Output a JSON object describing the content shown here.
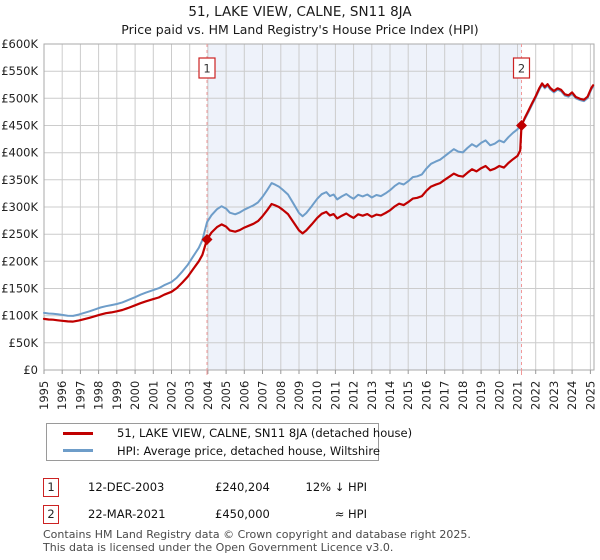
{
  "title": "51, LAKE VIEW, CALNE, SN11 8JA",
  "subtitle": "Price paid vs. HM Land Registry's House Price Index (HPI)",
  "colors": {
    "property_line": "#c00000",
    "hpi_line": "#6e9dc9",
    "dashed_marker_line": "#f19999",
    "shaded_region": "#eef2fa",
    "gridline": "#cccccc",
    "plot_border": "#aaaaaa",
    "marker_box_border": "#cc2222",
    "axis_text": "#222222"
  },
  "chart_data": {
    "type": "line",
    "xlim": [
      1995,
      2025.2
    ],
    "ylim": [
      0,
      600000
    ],
    "ytick_step": 50000,
    "yticks": [
      0,
      50000,
      100000,
      150000,
      200000,
      250000,
      300000,
      350000,
      400000,
      450000,
      500000,
      550000,
      600000
    ],
    "ytick_labels": [
      "£0",
      "£50K",
      "£100K",
      "£150K",
      "£200K",
      "£250K",
      "£300K",
      "£350K",
      "£400K",
      "£450K",
      "£500K",
      "£550K",
      "£600K"
    ],
    "xticks": [
      1995,
      1996,
      1997,
      1998,
      1999,
      2000,
      2001,
      2002,
      2003,
      2004,
      2005,
      2006,
      2007,
      2008,
      2009,
      2010,
      2011,
      2012,
      2013,
      2014,
      2015,
      2016,
      2017,
      2018,
      2019,
      2020,
      2021,
      2022,
      2023,
      2024,
      2025
    ],
    "grid": true,
    "legend_position": "bottom",
    "shaded_region": {
      "from": 2003.95,
      "to": 2021.22
    },
    "sale_markers": [
      {
        "label": "1",
        "year": 2003.95,
        "price": 240204
      },
      {
        "label": "2",
        "year": 2021.22,
        "price": 450000
      }
    ],
    "series": [
      {
        "name": "HPI: Average price, detached house, Wiltshire",
        "color": "#6e9dc9",
        "points": [
          [
            1995.0,
            105000
          ],
          [
            1995.25,
            104000
          ],
          [
            1995.5,
            103500
          ],
          [
            1995.75,
            102500
          ],
          [
            1996.0,
            101500
          ],
          [
            1996.3,
            100000
          ],
          [
            1996.6,
            99500
          ],
          [
            1996.9,
            102000
          ],
          [
            1997.2,
            105000
          ],
          [
            1997.5,
            108000
          ],
          [
            1997.8,
            111500
          ],
          [
            1998.1,
            115000
          ],
          [
            1998.4,
            117500
          ],
          [
            1998.7,
            119500
          ],
          [
            1999.0,
            121500
          ],
          [
            1999.3,
            124500
          ],
          [
            1999.6,
            128500
          ],
          [
            2000.0,
            134000
          ],
          [
            2000.3,
            138500
          ],
          [
            2000.6,
            142500
          ],
          [
            2001.0,
            147000
          ],
          [
            2001.3,
            150500
          ],
          [
            2001.6,
            156000
          ],
          [
            2002.0,
            162000
          ],
          [
            2002.3,
            170000
          ],
          [
            2002.6,
            181500
          ],
          [
            2002.9,
            194000
          ],
          [
            2003.2,
            209500
          ],
          [
            2003.5,
            225000
          ],
          [
            2003.7,
            239000
          ],
          [
            2003.95,
            272000
          ],
          [
            2004.2,
            285000
          ],
          [
            2004.5,
            296000
          ],
          [
            2004.75,
            301500
          ],
          [
            2005.0,
            297000
          ],
          [
            2005.2,
            289500
          ],
          [
            2005.5,
            286500
          ],
          [
            2005.75,
            290000
          ],
          [
            2006.0,
            295000
          ],
          [
            2006.25,
            299000
          ],
          [
            2006.5,
            303000
          ],
          [
            2006.75,
            308500
          ],
          [
            2007.0,
            318500
          ],
          [
            2007.25,
            331000
          ],
          [
            2007.5,
            344000
          ],
          [
            2007.7,
            341000
          ],
          [
            2007.9,
            337500
          ],
          [
            2008.1,
            332000
          ],
          [
            2008.4,
            323000
          ],
          [
            2008.7,
            306000
          ],
          [
            2009.0,
            289000
          ],
          [
            2009.2,
            283000
          ],
          [
            2009.4,
            289000
          ],
          [
            2009.7,
            301500
          ],
          [
            2010.0,
            315000
          ],
          [
            2010.25,
            323500
          ],
          [
            2010.5,
            327500
          ],
          [
            2010.7,
            320000
          ],
          [
            2010.9,
            323000
          ],
          [
            2011.1,
            314000
          ],
          [
            2011.35,
            319500
          ],
          [
            2011.6,
            324000
          ],
          [
            2011.8,
            319000
          ],
          [
            2012.0,
            315000
          ],
          [
            2012.25,
            322500
          ],
          [
            2012.5,
            319500
          ],
          [
            2012.75,
            323000
          ],
          [
            2013.0,
            317500
          ],
          [
            2013.25,
            322000
          ],
          [
            2013.5,
            320000
          ],
          [
            2013.75,
            325000
          ],
          [
            2014.0,
            331000
          ],
          [
            2014.25,
            338500
          ],
          [
            2014.5,
            344000
          ],
          [
            2014.75,
            341500
          ],
          [
            2015.0,
            347500
          ],
          [
            2015.25,
            355000
          ],
          [
            2015.5,
            356500
          ],
          [
            2015.75,
            360000
          ],
          [
            2016.0,
            371000
          ],
          [
            2016.25,
            379500
          ],
          [
            2016.5,
            383500
          ],
          [
            2016.75,
            387000
          ],
          [
            2017.0,
            393500
          ],
          [
            2017.25,
            400000
          ],
          [
            2017.5,
            406500
          ],
          [
            2017.75,
            402000
          ],
          [
            2018.0,
            400500
          ],
          [
            2018.25,
            408500
          ],
          [
            2018.5,
            415500
          ],
          [
            2018.75,
            411000
          ],
          [
            2019.0,
            418000
          ],
          [
            2019.25,
            422500
          ],
          [
            2019.5,
            413500
          ],
          [
            2019.75,
            416500
          ],
          [
            2020.0,
            422500
          ],
          [
            2020.25,
            419000
          ],
          [
            2020.5,
            428500
          ],
          [
            2020.75,
            436500
          ],
          [
            2021.0,
            443000
          ],
          [
            2021.22,
            452000
          ],
          [
            2021.4,
            462000
          ],
          [
            2021.6,
            474500
          ],
          [
            2021.8,
            488500
          ],
          [
            2022.0,
            501500
          ],
          [
            2022.2,
            516500
          ],
          [
            2022.35,
            525000
          ],
          [
            2022.5,
            518500
          ],
          [
            2022.65,
            523500
          ],
          [
            2022.8,
            516500
          ],
          [
            2023.0,
            511000
          ],
          [
            2023.2,
            516000
          ],
          [
            2023.4,
            513000
          ],
          [
            2023.6,
            505000
          ],
          [
            2023.8,
            503000
          ],
          [
            2024.0,
            508500
          ],
          [
            2024.2,
            500000
          ],
          [
            2024.45,
            496500
          ],
          [
            2024.65,
            495000
          ],
          [
            2024.85,
            500500
          ],
          [
            2025.05,
            516500
          ],
          [
            2025.15,
            521500
          ]
        ]
      },
      {
        "name": "51, LAKE VIEW, CALNE, SN11 8JA (detached house)",
        "color": "#c00000",
        "points": [
          [
            1995.0,
            94000
          ],
          [
            1995.25,
            93000
          ],
          [
            1995.5,
            92500
          ],
          [
            1995.75,
            91500
          ],
          [
            1996.0,
            90500
          ],
          [
            1996.3,
            89500
          ],
          [
            1996.6,
            89000
          ],
          [
            1996.9,
            91000
          ],
          [
            1997.2,
            93500
          ],
          [
            1997.5,
            96000
          ],
          [
            1997.8,
            99000
          ],
          [
            1998.1,
            102000
          ],
          [
            1998.4,
            104500
          ],
          [
            1998.7,
            106000
          ],
          [
            1999.0,
            108000
          ],
          [
            1999.3,
            110500
          ],
          [
            1999.6,
            114000
          ],
          [
            2000.0,
            119000
          ],
          [
            2000.3,
            123000
          ],
          [
            2000.6,
            126500
          ],
          [
            2001.0,
            130500
          ],
          [
            2001.3,
            133500
          ],
          [
            2001.6,
            138500
          ],
          [
            2002.0,
            144000
          ],
          [
            2002.3,
            151000
          ],
          [
            2002.6,
            161000
          ],
          [
            2002.9,
            172000
          ],
          [
            2003.2,
            186000
          ],
          [
            2003.5,
            200000
          ],
          [
            2003.7,
            212000
          ],
          [
            2003.95,
            240204
          ],
          [
            2004.2,
            253000
          ],
          [
            2004.5,
            263000
          ],
          [
            2004.75,
            268000
          ],
          [
            2005.0,
            264000
          ],
          [
            2005.2,
            257000
          ],
          [
            2005.5,
            254500
          ],
          [
            2005.75,
            257500
          ],
          [
            2006.0,
            262000
          ],
          [
            2006.25,
            265500
          ],
          [
            2006.5,
            269000
          ],
          [
            2006.75,
            274000
          ],
          [
            2007.0,
            283000
          ],
          [
            2007.25,
            294000
          ],
          [
            2007.5,
            305500
          ],
          [
            2007.7,
            303000
          ],
          [
            2007.9,
            300000
          ],
          [
            2008.1,
            295000
          ],
          [
            2008.4,
            287000
          ],
          [
            2008.7,
            272000
          ],
          [
            2009.0,
            257000
          ],
          [
            2009.2,
            251500
          ],
          [
            2009.4,
            257000
          ],
          [
            2009.7,
            268000
          ],
          [
            2010.0,
            280000
          ],
          [
            2010.25,
            287500
          ],
          [
            2010.5,
            291000
          ],
          [
            2010.7,
            284500
          ],
          [
            2010.9,
            287000
          ],
          [
            2011.1,
            279000
          ],
          [
            2011.35,
            284000
          ],
          [
            2011.6,
            288000
          ],
          [
            2011.8,
            283500
          ],
          [
            2012.0,
            280000
          ],
          [
            2012.25,
            286500
          ],
          [
            2012.5,
            284000
          ],
          [
            2012.75,
            287000
          ],
          [
            2013.0,
            282000
          ],
          [
            2013.25,
            286000
          ],
          [
            2013.5,
            284500
          ],
          [
            2013.75,
            289000
          ],
          [
            2014.0,
            294000
          ],
          [
            2014.25,
            301000
          ],
          [
            2014.5,
            306000
          ],
          [
            2014.75,
            303500
          ],
          [
            2015.0,
            309000
          ],
          [
            2015.25,
            315500
          ],
          [
            2015.5,
            317000
          ],
          [
            2015.75,
            320000
          ],
          [
            2016.0,
            330000
          ],
          [
            2016.25,
            337500
          ],
          [
            2016.5,
            341000
          ],
          [
            2016.75,
            344000
          ],
          [
            2017.0,
            350000
          ],
          [
            2017.25,
            355500
          ],
          [
            2017.5,
            361500
          ],
          [
            2017.75,
            357500
          ],
          [
            2018.0,
            356000
          ],
          [
            2018.25,
            363000
          ],
          [
            2018.5,
            369500
          ],
          [
            2018.75,
            365500
          ],
          [
            2019.0,
            371500
          ],
          [
            2019.25,
            375500
          ],
          [
            2019.5,
            367500
          ],
          [
            2019.75,
            370500
          ],
          [
            2020.0,
            375500
          ],
          [
            2020.25,
            372500
          ],
          [
            2020.5,
            381000
          ],
          [
            2020.75,
            388000
          ],
          [
            2021.0,
            394000
          ],
          [
            2021.15,
            404000
          ],
          [
            2021.22,
            450000
          ],
          [
            2021.4,
            464000
          ],
          [
            2021.6,
            477000
          ],
          [
            2021.8,
            491000
          ],
          [
            2022.0,
            504000
          ],
          [
            2022.2,
            519000
          ],
          [
            2022.35,
            527500
          ],
          [
            2022.5,
            521000
          ],
          [
            2022.65,
            526000
          ],
          [
            2022.8,
            519000
          ],
          [
            2023.0,
            513500
          ],
          [
            2023.2,
            518500
          ],
          [
            2023.4,
            515500
          ],
          [
            2023.6,
            507500
          ],
          [
            2023.8,
            505500
          ],
          [
            2024.0,
            511000
          ],
          [
            2024.2,
            502500
          ],
          [
            2024.45,
            499000
          ],
          [
            2024.65,
            497500
          ],
          [
            2024.85,
            503000
          ],
          [
            2025.05,
            519000
          ],
          [
            2025.15,
            524000
          ]
        ]
      }
    ]
  },
  "legend": {
    "items": [
      {
        "label": "51, LAKE VIEW, CALNE, SN11 8JA (detached house)",
        "color": "#c00000"
      },
      {
        "label": "HPI: Average price, detached house, Wiltshire",
        "color": "#6e9dc9"
      }
    ]
  },
  "annotations": [
    {
      "badge": "1",
      "date": "12-DEC-2003",
      "price": "£240,204",
      "hpi": "12% ↓ HPI"
    },
    {
      "badge": "2",
      "date": "22-MAR-2021",
      "price": "£450,000",
      "hpi": "≈ HPI"
    }
  ],
  "footer": {
    "line1": "Contains HM Land Registry data © Crown copyright and database right 2025.",
    "line2": "This data is licensed under the Open Government Licence v3.0."
  }
}
